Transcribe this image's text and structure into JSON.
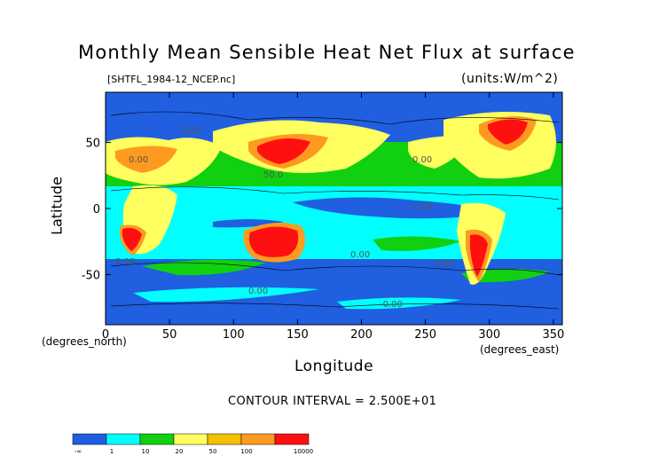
{
  "chart_data": {
    "type": "heatmap",
    "title": "Monthly Mean Sensible Heat Net Flux at surface",
    "subtitle": "[SHTFL_1984-12_NCEP.nc]",
    "units": "(units:W/m^2)",
    "xlabel": "Longitude",
    "ylabel": "Latitude",
    "x_unit_label": "(degrees_north)",
    "x_unit_label_right": "(degrees_east)",
    "xlim": [
      0,
      357
    ],
    "ylim": [
      -88,
      88
    ],
    "xticks": [
      0,
      50,
      100,
      150,
      200,
      250,
      300,
      350
    ],
    "yticks": [
      50,
      0,
      -50
    ],
    "contour_interval_text": "CONTOUR INTERVAL = 2.500E+01",
    "colorbar": {
      "labels": [
        "-∞",
        "1",
        "10",
        "20",
        "50",
        "100",
        "10000"
      ],
      "colors": [
        "#1f5fe0",
        "#00ffff",
        "#10d010",
        "#ffff60",
        "#f5c000",
        "#ff9a20",
        "#ff1010"
      ]
    },
    "contour_labels": [
      "0.00",
      "50.0",
      "0.00",
      "0.00",
      "0.00",
      "0.00",
      "0.00",
      "0.00",
      "-0.00",
      "0.00"
    ]
  }
}
